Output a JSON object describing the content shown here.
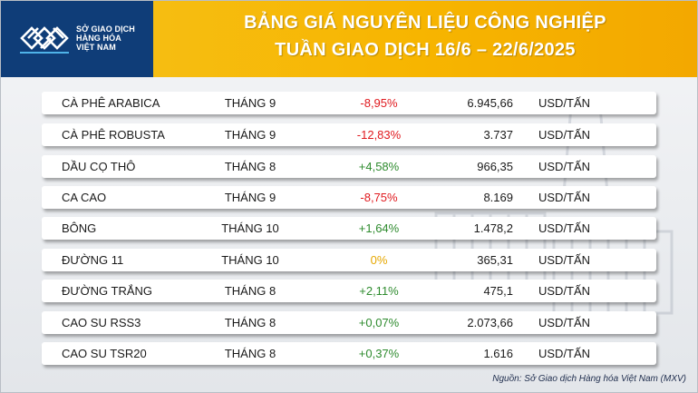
{
  "header": {
    "logo_lines": [
      "SỞ GIAO DỊCH",
      "HÀNG HÓA",
      "VIỆT NAM"
    ],
    "title_line1": "BẢNG GIÁ NGUYÊN LIỆU CÔNG NGHIỆP",
    "title_line2": "TUẦN GIAO DỊCH 16/6 – 22/6/2025"
  },
  "colors": {
    "header_yellow": "#f7b500",
    "logo_navy": "#0f3d78",
    "negative": "#e0191e",
    "positive": "#2e8b2e",
    "neutral": "#e6a700"
  },
  "rows": [
    {
      "name": "CÀ PHÊ ARABICA",
      "month": "THÁNG 9",
      "change": "-8,95%",
      "trend": "negative",
      "price": "6.945,66",
      "unit": "USD/TẤN"
    },
    {
      "name": "CÀ PHÊ ROBUSTA",
      "month": "THÁNG 9",
      "change": "-12,83%",
      "trend": "negative",
      "price": "3.737",
      "unit": "USD/TẤN"
    },
    {
      "name": "DẦU CỌ THÔ",
      "month": "THÁNG 8",
      "change": "+4,58%",
      "trend": "positive",
      "price": "966,35",
      "unit": "USD/TẤN"
    },
    {
      "name": "CA CAO",
      "month": "THÁNG 9",
      "change": "-8,75%",
      "trend": "negative",
      "price": "8.169",
      "unit": "USD/TẤN"
    },
    {
      "name": "BÔNG",
      "month": "THÁNG 10",
      "change": "+1,64%",
      "trend": "positive",
      "price": "1.478,2",
      "unit": "USD/TẤN"
    },
    {
      "name": "ĐƯỜNG 11",
      "month": "THÁNG 10",
      "change": "0%",
      "trend": "neutral",
      "price": "365,31",
      "unit": "USD/TẤN"
    },
    {
      "name": "ĐƯỜNG TRẮNG",
      "month": "THÁNG 8",
      "change": "+2,11%",
      "trend": "positive",
      "price": "475,1",
      "unit": "USD/TẤN"
    },
    {
      "name": "CAO SU RSS3",
      "month": "THÁNG 8",
      "change": "+0,07%",
      "trend": "positive",
      "price": "2.073,66",
      "unit": "USD/TẤN"
    },
    {
      "name": "CAO SU TSR20",
      "month": "THÁNG 8",
      "change": "+0,37%",
      "trend": "positive",
      "price": "1.616",
      "unit": "USD/TẤN"
    }
  ],
  "source": "Nguồn: Sở Giao dịch Hàng hóa Việt Nam (MXV)"
}
